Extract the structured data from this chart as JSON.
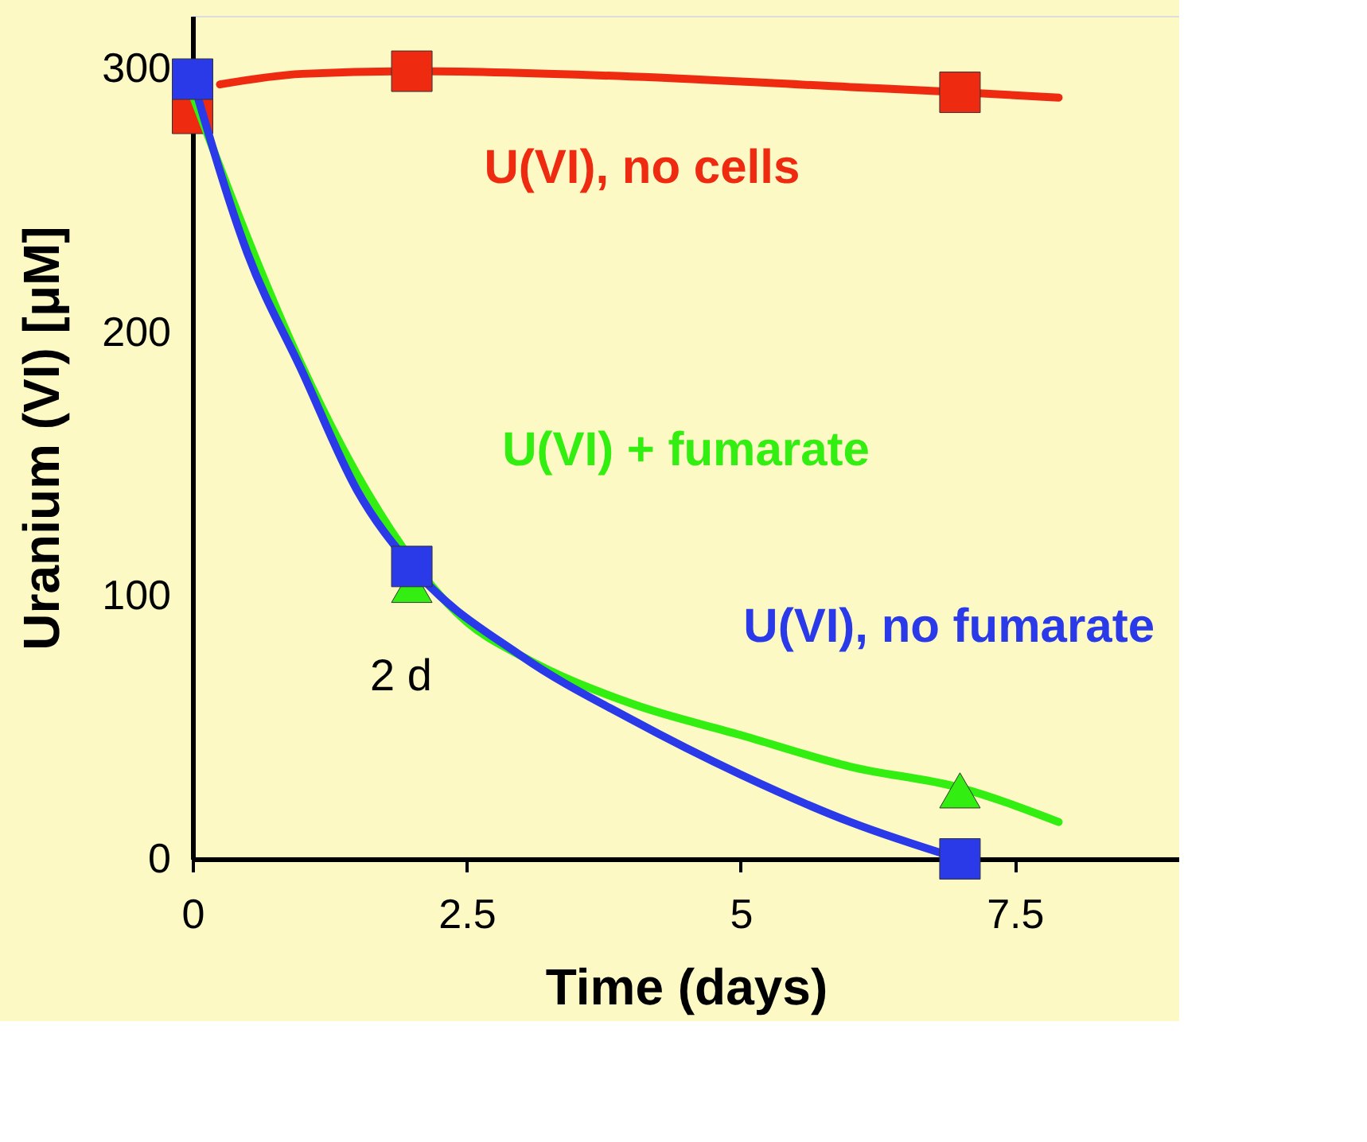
{
  "chart_data": {
    "type": "line",
    "xlabel": "Time (days)",
    "ylabel": "Uranium (VI) [μM]",
    "xlim": [
      0,
      9
    ],
    "ylim": [
      0,
      320
    ],
    "xticks": [
      0,
      2.5,
      5,
      7.5
    ],
    "yticks": [
      0,
      100,
      200,
      300
    ],
    "grid": false,
    "series": [
      {
        "name": "U(VI), no cells",
        "color": "#ee2a10",
        "line_style": "solid",
        "x": [
          0.25,
          1,
          2,
          4,
          6,
          7,
          7.9
        ],
        "values": [
          294,
          298,
          299,
          297,
          293,
          291,
          289
        ]
      },
      {
        "type": "scatter",
        "color": "#ee2a10",
        "marker": "square",
        "x": [
          0,
          2,
          7
        ],
        "values": [
          283,
          299,
          291
        ]
      },
      {
        "name": "U(VI) + fumarate",
        "color": "#33ee11",
        "line_style": "solid",
        "x": [
          0,
          1,
          1.5,
          2.5,
          3,
          4,
          5,
          6,
          7,
          7.9
        ],
        "values": [
          290,
          187,
          146,
          90,
          77,
          59,
          47,
          35,
          27,
          14
        ]
      },
      {
        "type": "scatter",
        "color": "#33ee11",
        "marker": "triangle",
        "x": [
          2,
          7
        ],
        "values": [
          104,
          26
        ]
      },
      {
        "name": "U(VI), no fumarate",
        "color": "#2a3ae8",
        "line_style": "solid",
        "x": [
          0,
          0.5,
          1,
          1.5,
          2,
          3,
          4,
          5,
          6,
          7
        ],
        "values": [
          296,
          230,
          185,
          140,
          111,
          77,
          53,
          32,
          14,
          0
        ]
      },
      {
        "type": "scatter",
        "color": "#2a3ae8",
        "marker": "square",
        "x": [
          0,
          2,
          7
        ],
        "values": [
          296,
          111,
          0
        ]
      }
    ],
    "annotations": [
      "2 d"
    ]
  }
}
